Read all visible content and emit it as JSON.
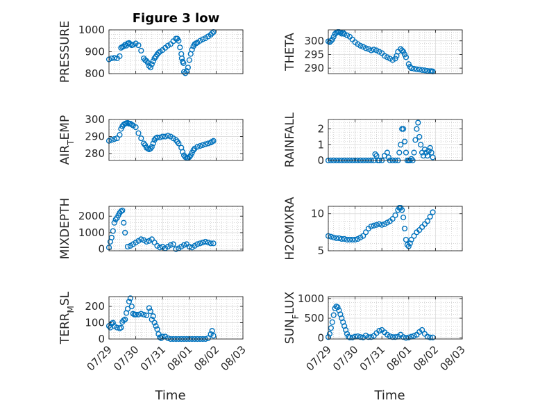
{
  "colors": {
    "marker": "#0072BD",
    "axis": "#262626",
    "grid": "#bdbdbd",
    "background": "#ffffff"
  },
  "chart_data": [
    {
      "type": "scatter",
      "title": "Figure 3 low",
      "ylabel": "PRESSURE",
      "xlabel": "",
      "xlim": [
        0,
        5
      ],
      "ylim": [
        800,
        1000
      ],
      "yticks": [
        800,
        900,
        1000
      ],
      "xticks": [
        "07/29",
        "07/30",
        "07/31",
        "08/01",
        "08/02",
        "08/03"
      ],
      "x": [
        0.0,
        0.1,
        0.2,
        0.3,
        0.4,
        0.45,
        0.5,
        0.55,
        0.6,
        0.65,
        0.7,
        0.75,
        0.8,
        0.85,
        0.9,
        1.0,
        1.1,
        1.2,
        1.3,
        1.35,
        1.4,
        1.45,
        1.5,
        1.55,
        1.6,
        1.65,
        1.7,
        1.75,
        1.8,
        1.85,
        1.9,
        2.0,
        2.1,
        2.2,
        2.3,
        2.4,
        2.5,
        2.55,
        2.6,
        2.65,
        2.7,
        2.72,
        2.75,
        2.78,
        2.8,
        2.85,
        2.9,
        2.95,
        3.0,
        3.05,
        3.1,
        3.15,
        3.2,
        3.25,
        3.3,
        3.4,
        3.5,
        3.6,
        3.7,
        3.8,
        3.85,
        3.9
      ],
      "y": [
        865,
        870,
        872,
        870,
        880,
        918,
        922,
        925,
        932,
        928,
        938,
        940,
        935,
        930,
        932,
        938,
        930,
        905,
        870,
        862,
        858,
        850,
        835,
        828,
        843,
        857,
        870,
        878,
        888,
        895,
        900,
        908,
        918,
        928,
        935,
        948,
        960,
        960,
        950,
        920,
        890,
        870,
        855,
        848,
        808,
        802,
        812,
        828,
        862,
        890,
        910,
        925,
        935,
        938,
        942,
        950,
        957,
        962,
        970,
        978,
        985,
        990
      ],
      "series": []
    },
    {
      "type": "scatter",
      "title": "",
      "ylabel": "THETA",
      "xlabel": "",
      "xlim": [
        0,
        5
      ],
      "ylim": [
        288,
        304
      ],
      "yticks": [
        290,
        295,
        300
      ],
      "xticks": [
        "07/29",
        "07/30",
        "07/31",
        "08/01",
        "08/02",
        "08/03"
      ],
      "x": [
        0.0,
        0.05,
        0.1,
        0.15,
        0.2,
        0.25,
        0.3,
        0.35,
        0.4,
        0.45,
        0.5,
        0.55,
        0.6,
        0.7,
        0.8,
        0.9,
        1.0,
        1.1,
        1.2,
        1.3,
        1.4,
        1.5,
        1.6,
        1.7,
        1.8,
        1.9,
        2.0,
        2.1,
        2.2,
        2.3,
        2.4,
        2.5,
        2.55,
        2.6,
        2.7,
        2.75,
        2.8,
        2.85,
        2.9,
        3.0,
        3.05,
        3.1,
        3.2,
        3.3,
        3.4,
        3.5,
        3.6,
        3.7,
        3.8,
        3.85,
        3.9
      ],
      "y": [
        299.8,
        299.5,
        300.0,
        300.5,
        301.5,
        302.5,
        303.0,
        303.2,
        303.2,
        303.0,
        302.6,
        303.0,
        302.5,
        302.0,
        301.5,
        300.5,
        299.5,
        298.8,
        298.2,
        297.8,
        297.3,
        297.0,
        296.5,
        296.8,
        296.5,
        296.0,
        295.5,
        294.5,
        294.0,
        293.5,
        293.0,
        293.5,
        294.5,
        296.0,
        297.0,
        296.5,
        296.0,
        295.0,
        294.0,
        291.5,
        290.5,
        290.0,
        289.8,
        289.6,
        289.5,
        289.3,
        289.2,
        289.0,
        288.9,
        288.9,
        288.8
      ],
      "series": []
    },
    {
      "type": "scatter",
      "title": "",
      "ylabel": "AIR_TEMP",
      "xlabel": "",
      "xlim": [
        0,
        5
      ],
      "ylim": [
        276,
        300
      ],
      "yticks": [
        280,
        290,
        300
      ],
      "xticks": [
        "07/29",
        "07/30",
        "07/31",
        "08/01",
        "08/02",
        "08/03"
      ],
      "x": [
        0.0,
        0.1,
        0.2,
        0.3,
        0.4,
        0.45,
        0.5,
        0.55,
        0.6,
        0.65,
        0.7,
        0.75,
        0.8,
        0.85,
        0.9,
        1.0,
        1.1,
        1.2,
        1.3,
        1.35,
        1.4,
        1.45,
        1.5,
        1.55,
        1.6,
        1.65,
        1.7,
        1.75,
        1.8,
        1.9,
        2.0,
        2.1,
        2.2,
        2.3,
        2.4,
        2.5,
        2.55,
        2.6,
        2.7,
        2.75,
        2.8,
        2.85,
        2.9,
        2.95,
        3.0,
        3.05,
        3.1,
        3.15,
        3.2,
        3.3,
        3.4,
        3.5,
        3.6,
        3.7,
        3.8,
        3.85,
        3.9
      ],
      "y": [
        287.5,
        288.0,
        288.5,
        289.0,
        291.0,
        294.5,
        296.0,
        297.0,
        297.5,
        297.8,
        298.0,
        297.5,
        297.5,
        297.0,
        296.5,
        295.5,
        292.0,
        289.0,
        286.0,
        285.0,
        283.5,
        283.0,
        282.5,
        283.0,
        284.0,
        286.0,
        288.0,
        289.0,
        289.5,
        289.5,
        290.0,
        290.0,
        290.5,
        290.0,
        289.0,
        288.0,
        287.0,
        286.0,
        283.5,
        281.0,
        279.0,
        278.0,
        277.5,
        277.5,
        278.0,
        279.0,
        280.5,
        282.0,
        283.0,
        284.0,
        284.5,
        285.0,
        285.5,
        286.0,
        286.5,
        287.0,
        287.5
      ],
      "series": []
    },
    {
      "type": "scatter",
      "title": "",
      "ylabel": "RAINFALL",
      "xlabel": "",
      "xlim": [
        0,
        5
      ],
      "ylim": [
        0,
        2.6
      ],
      "yticks": [
        0,
        1,
        2
      ],
      "xticks": [
        "07/29",
        "07/30",
        "07/31",
        "08/01",
        "08/02",
        "08/03"
      ],
      "x": [
        0.0,
        0.1,
        0.2,
        0.3,
        0.4,
        0.5,
        0.6,
        0.7,
        0.8,
        0.9,
        1.0,
        1.1,
        1.2,
        1.3,
        1.4,
        1.5,
        1.6,
        1.7,
        1.75,
        1.8,
        1.85,
        1.9,
        2.0,
        2.1,
        2.2,
        2.25,
        2.3,
        2.4,
        2.5,
        2.6,
        2.65,
        2.7,
        2.75,
        2.8,
        2.85,
        2.9,
        2.95,
        3.0,
        3.05,
        3.1,
        3.15,
        3.2,
        3.25,
        3.3,
        3.35,
        3.4,
        3.45,
        3.5,
        3.55,
        3.6,
        3.65,
        3.7,
        3.75,
        3.8,
        3.85,
        3.9
      ],
      "y": [
        0,
        0,
        0,
        0,
        0,
        0,
        0,
        0,
        0,
        0,
        0,
        0,
        0,
        0,
        0,
        0,
        0,
        0,
        0.4,
        0.3,
        0,
        0,
        0,
        0.3,
        0.5,
        0.2,
        0,
        0,
        0,
        0,
        0.5,
        1.0,
        2.0,
        2.0,
        1.2,
        0.5,
        0,
        0,
        0,
        0.1,
        0,
        0.5,
        1.3,
        2.0,
        2.4,
        1.5,
        1.0,
        0.5,
        0.3,
        0.7,
        0.5,
        0.3,
        0.6,
        0.8,
        0.5,
        0.2
      ],
      "series": []
    },
    {
      "type": "scatter",
      "title": "",
      "ylabel": "MIXDEPTH",
      "xlabel": "",
      "xlim": [
        0,
        5
      ],
      "ylim": [
        -100,
        2600
      ],
      "yticks": [
        0,
        1000,
        2000
      ],
      "xticks": [
        "07/29",
        "07/30",
        "07/31",
        "08/01",
        "08/02",
        "08/03"
      ],
      "x": [
        0.0,
        0.05,
        0.1,
        0.15,
        0.2,
        0.25,
        0.3,
        0.35,
        0.4,
        0.45,
        0.5,
        0.55,
        0.6,
        0.7,
        0.8,
        0.9,
        1.0,
        1.1,
        1.2,
        1.3,
        1.4,
        1.5,
        1.6,
        1.7,
        1.8,
        1.9,
        2.0,
        2.1,
        2.2,
        2.3,
        2.4,
        2.5,
        2.6,
        2.7,
        2.8,
        2.9,
        3.0,
        3.1,
        3.2,
        3.3,
        3.4,
        3.5,
        3.6,
        3.7,
        3.8,
        3.9
      ],
      "y": [
        100,
        450,
        700,
        1100,
        1600,
        1800,
        1900,
        2050,
        2200,
        2300,
        2350,
        1600,
        1000,
        150,
        200,
        300,
        400,
        500,
        600,
        550,
        450,
        500,
        600,
        400,
        200,
        100,
        150,
        50,
        150,
        250,
        300,
        0,
        50,
        150,
        250,
        300,
        150,
        100,
        200,
        300,
        350,
        400,
        450,
        400,
        350,
        350
      ],
      "series": []
    },
    {
      "type": "scatter",
      "title": "",
      "ylabel": "H2OMIXRA",
      "xlabel": "",
      "xlim": [
        0,
        5
      ],
      "ylim": [
        5,
        11
      ],
      "yticks": [
        5,
        10
      ],
      "xticks": [
        "07/29",
        "07/30",
        "07/31",
        "08/01",
        "08/02",
        "08/03"
      ],
      "x": [
        0.0,
        0.1,
        0.2,
        0.3,
        0.4,
        0.5,
        0.6,
        0.7,
        0.8,
        0.9,
        1.0,
        1.1,
        1.2,
        1.3,
        1.4,
        1.5,
        1.6,
        1.7,
        1.8,
        1.9,
        2.0,
        2.1,
        2.2,
        2.3,
        2.4,
        2.5,
        2.6,
        2.65,
        2.7,
        2.75,
        2.8,
        2.85,
        2.9,
        2.95,
        3.0,
        3.05,
        3.1,
        3.2,
        3.3,
        3.4,
        3.5,
        3.6,
        3.7,
        3.8,
        3.9
      ],
      "y": [
        7.0,
        6.9,
        6.8,
        6.7,
        6.7,
        6.6,
        6.6,
        6.5,
        6.5,
        6.5,
        6.5,
        6.6,
        6.8,
        7.0,
        7.5,
        8.0,
        8.3,
        8.4,
        8.5,
        8.6,
        8.5,
        8.6,
        8.8,
        9.0,
        9.3,
        9.8,
        10.5,
        10.8,
        10.8,
        10.5,
        9.5,
        8.0,
        6.5,
        5.8,
        5.6,
        6.0,
        6.5,
        7.0,
        7.5,
        7.8,
        8.2,
        8.6,
        9.0,
        9.6,
        10.2
      ],
      "series": []
    },
    {
      "type": "scatter",
      "title": "",
      "ylabel": "TERR_MSL",
      "xlabel": "Time",
      "xlim": [
        0,
        5
      ],
      "ylim": [
        0,
        260
      ],
      "yticks": [
        0,
        100,
        200
      ],
      "xticks": [
        "07/29",
        "07/30",
        "07/31",
        "08/01",
        "08/02",
        "08/03"
      ],
      "x": [
        0.0,
        0.05,
        0.1,
        0.15,
        0.2,
        0.3,
        0.4,
        0.45,
        0.5,
        0.55,
        0.6,
        0.65,
        0.7,
        0.75,
        0.8,
        0.85,
        0.9,
        0.95,
        1.0,
        1.1,
        1.2,
        1.3,
        1.4,
        1.5,
        1.55,
        1.6,
        1.65,
        1.7,
        1.75,
        1.8,
        1.85,
        1.9,
        1.95,
        2.0,
        2.1,
        2.2,
        2.3,
        2.4,
        2.5,
        2.6,
        2.7,
        2.8,
        2.9,
        3.0,
        3.1,
        3.2,
        3.3,
        3.4,
        3.5,
        3.6,
        3.7,
        3.8,
        3.85,
        3.9
      ],
      "y": [
        80,
        70,
        95,
        100,
        80,
        70,
        65,
        70,
        105,
        115,
        120,
        160,
        185,
        230,
        250,
        200,
        155,
        150,
        150,
        150,
        155,
        150,
        145,
        190,
        170,
        120,
        140,
        100,
        80,
        60,
        30,
        10,
        5,
        15,
        15,
        5,
        0,
        0,
        0,
        0,
        0,
        0,
        0,
        0,
        0,
        0,
        0,
        0,
        0,
        0,
        5,
        30,
        50,
        20
      ],
      "series": []
    },
    {
      "type": "scatter",
      "title": "",
      "ylabel": "SUN_FLUX",
      "xlabel": "Time",
      "xlim": [
        0,
        5
      ],
      "ylim": [
        -30,
        1050
      ],
      "yticks": [
        0,
        500,
        1000
      ],
      "xticks": [
        "07/29",
        "07/30",
        "07/31",
        "08/01",
        "08/02",
        "08/03"
      ],
      "x": [
        0.0,
        0.05,
        0.1,
        0.15,
        0.2,
        0.25,
        0.3,
        0.35,
        0.4,
        0.45,
        0.5,
        0.55,
        0.6,
        0.65,
        0.7,
        0.75,
        0.8,
        0.9,
        1.0,
        1.1,
        1.2,
        1.3,
        1.4,
        1.5,
        1.6,
        1.7,
        1.8,
        1.9,
        2.0,
        2.1,
        2.2,
        2.3,
        2.4,
        2.5,
        2.6,
        2.7,
        2.8,
        2.9,
        3.0,
        3.1,
        3.2,
        3.3,
        3.4,
        3.5,
        3.6,
        3.7,
        3.8,
        3.9
      ],
      "y": [
        20,
        100,
        250,
        400,
        580,
        750,
        800,
        780,
        700,
        600,
        500,
        400,
        300,
        200,
        100,
        30,
        10,
        10,
        30,
        40,
        20,
        10,
        60,
        20,
        20,
        50,
        120,
        180,
        200,
        140,
        80,
        40,
        20,
        20,
        30,
        80,
        20,
        0,
        10,
        30,
        50,
        80,
        150,
        200,
        100,
        30,
        10,
        10
      ],
      "series": []
    }
  ]
}
